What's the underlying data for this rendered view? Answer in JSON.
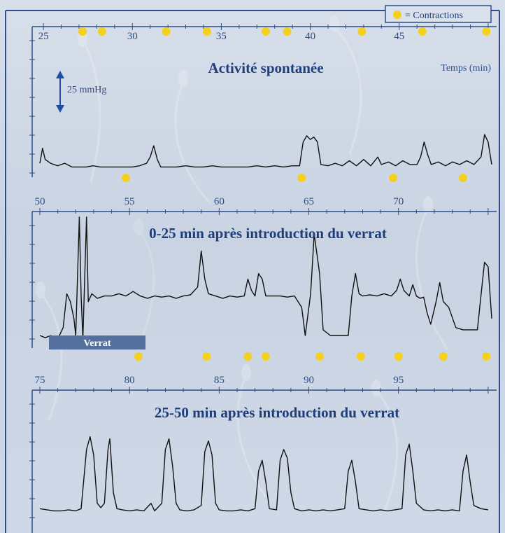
{
  "chart_data": [
    {
      "type": "line",
      "title": "Activité spontanée",
      "xlabel": "Temps (min)",
      "ylabel": "",
      "xlim": [
        24.8,
        50.2
      ],
      "ylim": [
        0,
        110
      ],
      "x_ticks": [
        25,
        30,
        35,
        40,
        45
      ],
      "scale_bar": "25 mmHg",
      "contractions_min": [
        27.2,
        28.3,
        31.9,
        34.2,
        37.5,
        38.7,
        42.9,
        46.3,
        50.0,
        54.8,
        64.6,
        69.7,
        73.6
      ],
      "series": [
        {
          "points": [
            [
              24.8,
              5
            ],
            [
              24.95,
              17
            ],
            [
              25.1,
              8
            ],
            [
              25.4,
              5
            ],
            [
              25.8,
              3
            ],
            [
              26.2,
              5
            ],
            [
              26.6,
              2
            ],
            [
              27,
              2
            ],
            [
              27.4,
              2
            ],
            [
              27.8,
              3
            ],
            [
              28.2,
              2
            ],
            [
              28.6,
              2
            ],
            [
              29,
              2
            ],
            [
              29.5,
              2
            ],
            [
              30,
              2
            ],
            [
              30.4,
              3
            ],
            [
              30.8,
              5
            ],
            [
              31,
              10
            ],
            [
              31.2,
              19
            ],
            [
              31.4,
              8
            ],
            [
              31.6,
              2
            ],
            [
              32,
              2
            ],
            [
              32.5,
              2
            ],
            [
              33,
              3
            ],
            [
              33.5,
              2
            ],
            [
              34,
              2
            ],
            [
              34.5,
              3
            ],
            [
              35,
              2
            ],
            [
              35.5,
              2
            ],
            [
              36,
              2
            ],
            [
              36.5,
              2
            ],
            [
              37,
              3
            ],
            [
              37.5,
              2
            ],
            [
              38,
              3
            ],
            [
              38.5,
              2
            ],
            [
              39,
              3
            ],
            [
              39.4,
              3
            ],
            [
              39.6,
              22
            ],
            [
              39.8,
              27
            ],
            [
              40,
              24
            ],
            [
              40.2,
              26
            ],
            [
              40.4,
              22
            ],
            [
              40.6,
              4
            ],
            [
              41,
              3
            ],
            [
              41.4,
              5
            ],
            [
              41.8,
              3
            ],
            [
              42.2,
              7
            ],
            [
              42.6,
              3
            ],
            [
              43,
              8
            ],
            [
              43.4,
              3
            ],
            [
              43.8,
              10
            ],
            [
              44,
              4
            ],
            [
              44.4,
              6
            ],
            [
              44.8,
              3
            ],
            [
              45.2,
              7
            ],
            [
              45.6,
              4
            ],
            [
              46,
              4
            ],
            [
              46.2,
              10
            ],
            [
              46.4,
              22
            ],
            [
              46.6,
              12
            ],
            [
              46.8,
              4
            ],
            [
              47.2,
              6
            ],
            [
              47.6,
              3
            ],
            [
              48,
              6
            ],
            [
              48.4,
              4
            ],
            [
              48.8,
              7
            ],
            [
              49.2,
              4
            ],
            [
              49.6,
              10
            ],
            [
              49.8,
              28
            ],
            [
              50,
              22
            ],
            [
              50.2,
              4
            ]
          ]
        }
      ]
    },
    {
      "type": "line",
      "title": "0-25 min après introduction du verrat",
      "xlabel": "",
      "ylabel": "",
      "xlim": [
        50,
        75.2
      ],
      "ylim": [
        0,
        110
      ],
      "x_ticks": [
        50,
        55,
        60,
        65,
        70
      ],
      "annotation": "Verrat",
      "contractions_min": [
        55.5,
        59.3,
        61.6,
        62.6,
        65.6,
        67.9,
        70.0,
        72.5,
        74.9
      ],
      "series": [
        {
          "points": [
            [
              50,
              5
            ],
            [
              50.3,
              3
            ],
            [
              50.6,
              5
            ],
            [
              51,
              2
            ],
            [
              51.3,
              12
            ],
            [
              51.5,
              42
            ],
            [
              51.7,
              35
            ],
            [
              51.9,
              20
            ],
            [
              52,
              5
            ],
            [
              52.2,
              110
            ],
            [
              52.3,
              40
            ],
            [
              52.4,
              2
            ],
            [
              52.6,
              110
            ],
            [
              52.7,
              35
            ],
            [
              52.9,
              42
            ],
            [
              53.2,
              38
            ],
            [
              53.6,
              40
            ],
            [
              54,
              40
            ],
            [
              54.4,
              42
            ],
            [
              54.8,
              40
            ],
            [
              55.2,
              44
            ],
            [
              55.6,
              40
            ],
            [
              56,
              38
            ],
            [
              56.4,
              40
            ],
            [
              56.8,
              39
            ],
            [
              57.2,
              40
            ],
            [
              57.6,
              38
            ],
            [
              58,
              40
            ],
            [
              58.4,
              41
            ],
            [
              58.8,
              48
            ],
            [
              59,
              80
            ],
            [
              59.2,
              55
            ],
            [
              59.4,
              42
            ],
            [
              59.8,
              40
            ],
            [
              60.2,
              38
            ],
            [
              60.6,
              40
            ],
            [
              61,
              39
            ],
            [
              61.4,
              40
            ],
            [
              61.6,
              55
            ],
            [
              61.8,
              45
            ],
            [
              62,
              40
            ],
            [
              62.2,
              60
            ],
            [
              62.4,
              55
            ],
            [
              62.6,
              40
            ],
            [
              63,
              40
            ],
            [
              63.4,
              40
            ],
            [
              63.8,
              39
            ],
            [
              64.2,
              40
            ],
            [
              64.6,
              30
            ],
            [
              64.8,
              5
            ],
            [
              65.1,
              42
            ],
            [
              65.3,
              95
            ],
            [
              65.6,
              60
            ],
            [
              65.8,
              10
            ],
            [
              66.2,
              5
            ],
            [
              66.6,
              5
            ],
            [
              67.2,
              5
            ],
            [
              67.4,
              40
            ],
            [
              67.6,
              60
            ],
            [
              67.8,
              42
            ],
            [
              68,
              40
            ],
            [
              68.4,
              41
            ],
            [
              68.8,
              40
            ],
            [
              69.2,
              42
            ],
            [
              69.6,
              40
            ],
            [
              69.9,
              45
            ],
            [
              70.1,
              55
            ],
            [
              70.3,
              45
            ],
            [
              70.6,
              40
            ],
            [
              70.8,
              50
            ],
            [
              71,
              40
            ],
            [
              71.2,
              38
            ],
            [
              71.4,
              39
            ],
            [
              71.6,
              25
            ],
            [
              71.8,
              15
            ],
            [
              72.1,
              35
            ],
            [
              72.3,
              52
            ],
            [
              72.5,
              35
            ],
            [
              72.8,
              30
            ],
            [
              73.2,
              12
            ],
            [
              73.6,
              10
            ],
            [
              74,
              10
            ],
            [
              74.4,
              10
            ],
            [
              74.6,
              40
            ],
            [
              74.8,
              70
            ],
            [
              75,
              66
            ],
            [
              75.2,
              20
            ]
          ]
        }
      ]
    },
    {
      "type": "line",
      "title": "25-50 min après introduction du verrat",
      "xlabel": "",
      "ylabel": "",
      "xlim": [
        75,
        100.2
      ],
      "ylim": [
        0,
        110
      ],
      "x_ticks": [
        75,
        80,
        85,
        90,
        95
      ],
      "series": [
        {
          "points": [
            [
              75,
              5
            ],
            [
              75.4,
              4
            ],
            [
              75.8,
              3
            ],
            [
              76.2,
              3
            ],
            [
              76.6,
              4
            ],
            [
              77,
              3
            ],
            [
              77.3,
              5
            ],
            [
              77.6,
              60
            ],
            [
              77.8,
              72
            ],
            [
              78,
              55
            ],
            [
              78.2,
              10
            ],
            [
              78.4,
              6
            ],
            [
              78.6,
              10
            ],
            [
              78.8,
              60
            ],
            [
              78.9,
              70
            ],
            [
              79.1,
              20
            ],
            [
              79.3,
              5
            ],
            [
              79.6,
              4
            ],
            [
              80,
              3
            ],
            [
              80.4,
              4
            ],
            [
              80.8,
              3
            ],
            [
              81.2,
              10
            ],
            [
              81.4,
              3
            ],
            [
              81.8,
              10
            ],
            [
              82,
              60
            ],
            [
              82.2,
              70
            ],
            [
              82.4,
              45
            ],
            [
              82.6,
              10
            ],
            [
              82.8,
              4
            ],
            [
              83.2,
              3
            ],
            [
              83.6,
              4
            ],
            [
              84,
              8
            ],
            [
              84.2,
              58
            ],
            [
              84.4,
              68
            ],
            [
              84.6,
              55
            ],
            [
              84.8,
              10
            ],
            [
              85,
              4
            ],
            [
              85.4,
              3
            ],
            [
              85.8,
              3
            ],
            [
              86.2,
              4
            ],
            [
              86.6,
              3
            ],
            [
              87,
              5
            ],
            [
              87.2,
              40
            ],
            [
              87.4,
              50
            ],
            [
              87.6,
              30
            ],
            [
              87.8,
              5
            ],
            [
              88.2,
              4
            ],
            [
              88.4,
              50
            ],
            [
              88.6,
              60
            ],
            [
              88.8,
              52
            ],
            [
              89,
              20
            ],
            [
              89.2,
              5
            ],
            [
              89.6,
              3
            ],
            [
              90,
              4
            ],
            [
              90.4,
              3
            ],
            [
              90.8,
              4
            ],
            [
              91.2,
              3
            ],
            [
              91.6,
              4
            ],
            [
              92,
              5
            ],
            [
              92.2,
              40
            ],
            [
              92.4,
              50
            ],
            [
              92.6,
              30
            ],
            [
              92.8,
              5
            ],
            [
              93.2,
              4
            ],
            [
              93.6,
              3
            ],
            [
              94,
              4
            ],
            [
              94.4,
              3
            ],
            [
              94.8,
              4
            ],
            [
              95.2,
              5
            ],
            [
              95.4,
              55
            ],
            [
              95.6,
              65
            ],
            [
              95.8,
              40
            ],
            [
              96,
              10
            ],
            [
              96.4,
              4
            ],
            [
              96.8,
              3
            ],
            [
              97.2,
              4
            ],
            [
              97.6,
              3
            ],
            [
              98,
              4
            ],
            [
              98.4,
              3
            ],
            [
              98.6,
              40
            ],
            [
              98.8,
              55
            ],
            [
              99,
              30
            ],
            [
              99.2,
              8
            ],
            [
              99.6,
              5
            ],
            [
              100,
              4
            ]
          ]
        }
      ]
    }
  ],
  "legend": {
    "marker_label": "= Contractions"
  },
  "colors": {
    "frame": "#2f4d86",
    "trace": "#111111",
    "contraction": "#f4d11e",
    "annotation_bar": "#56709e",
    "text": "#1f3f7c"
  }
}
